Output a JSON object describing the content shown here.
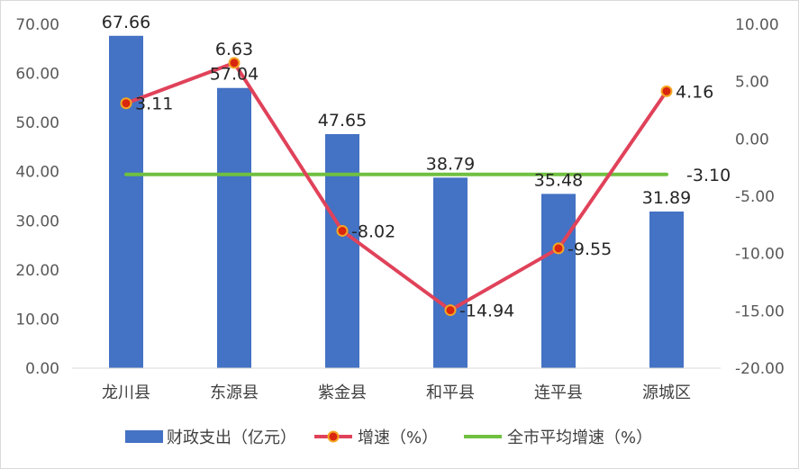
{
  "chart_data": {
    "type": "bar",
    "categories": [
      "龙川县",
      "东源县",
      "紫金县",
      "和平县",
      "连平县",
      "源城区"
    ],
    "series": [
      {
        "name": "财政支出（亿元）",
        "type": "bar",
        "axis": "left",
        "values": [
          67.66,
          57.04,
          47.65,
          38.79,
          35.48,
          31.89
        ],
        "color": "#4472c4"
      },
      {
        "name": "增速（%）",
        "type": "line",
        "axis": "right",
        "values": [
          3.11,
          6.63,
          -8.02,
          -14.94,
          -9.55,
          4.16
        ],
        "color": "#e0425a",
        "marker_fill": "#d9260f"
      },
      {
        "name": "全市平均增速（%）",
        "type": "line",
        "axis": "right",
        "values": [
          -3.1,
          -3.1,
          -3.1,
          -3.1,
          -3.1,
          -3.1
        ],
        "color": "#70c040"
      }
    ],
    "bar_labels": [
      "67.66",
      "57.04",
      "47.65",
      "38.79",
      "35.48",
      "31.89"
    ],
    "growth_labels": [
      "3.11",
      "6.63",
      "-8.02",
      "-14.94",
      "-9.55",
      "4.16"
    ],
    "avg_label": "-3.10",
    "y_left": {
      "min": 0,
      "max": 70,
      "step": 10,
      "ticks": [
        "0.00",
        "10.00",
        "20.00",
        "30.00",
        "40.00",
        "50.00",
        "60.00",
        "70.00"
      ]
    },
    "y_right": {
      "min": -20,
      "max": 10,
      "step": 5,
      "ticks": [
        "-20.00",
        "-15.00",
        "-10.00",
        "-5.00",
        "0.00",
        "5.00",
        "10.00"
      ]
    },
    "grid": false,
    "legend_position": "bottom"
  }
}
